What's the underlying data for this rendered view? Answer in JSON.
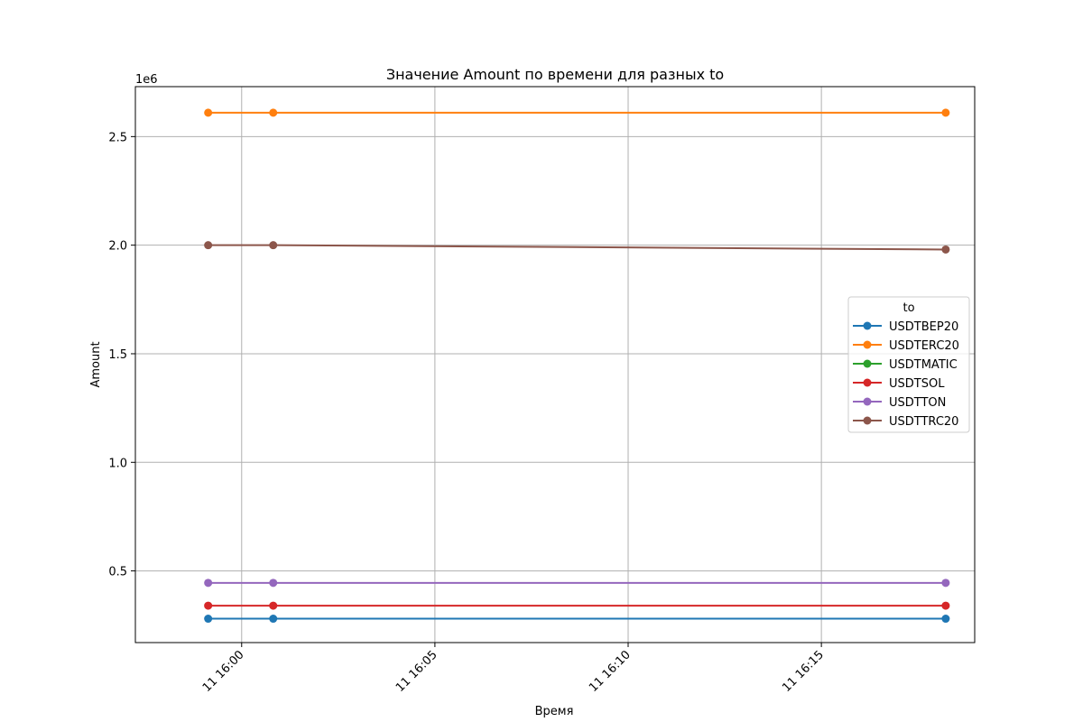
{
  "chart_data": {
    "type": "line",
    "title": "Значение Amount по времени для разных to",
    "xlabel": "Время",
    "ylabel": "Amount",
    "y_offset_label": "1e6",
    "x_ticks": [
      "11 16:00",
      "11 16:05",
      "11 16:10",
      "11 16:15"
    ],
    "y_ticks": [
      "0.5",
      "1.0",
      "1.5",
      "2.0",
      "2.5"
    ],
    "y_tick_values": [
      500000,
      1000000,
      1500000,
      2000000,
      2500000
    ],
    "x_tick_values": [
      "16:00",
      "16:05",
      "16:10",
      "16:15"
    ],
    "x": [
      "15:59:08",
      "16:00:49",
      "16:18:13"
    ],
    "xlim": [
      "15:57:15",
      "16:18:58"
    ],
    "ylim": [
      170000,
      2730000
    ],
    "grid": true,
    "legend_title": "to",
    "legend_position": "center-right",
    "series": [
      {
        "name": "USDTBEP20",
        "color": "#1f77b4",
        "values": [
          280000,
          280000,
          280000
        ]
      },
      {
        "name": "USDTERC20",
        "color": "#ff7f0e",
        "values": [
          2610000,
          2610000,
          2610000
        ]
      },
      {
        "name": "USDTMATIC",
        "color": "#2ca02c",
        "values": [
          null,
          null,
          null
        ]
      },
      {
        "name": "USDTSOL",
        "color": "#d62728",
        "values": [
          340000,
          340000,
          340000
        ]
      },
      {
        "name": "USDTTON",
        "color": "#9467bd",
        "values": [
          445000,
          445000,
          445000
        ]
      },
      {
        "name": "USDTTRC20",
        "color": "#8c564b",
        "values": [
          2000000,
          2000000,
          1980000
        ]
      }
    ]
  }
}
